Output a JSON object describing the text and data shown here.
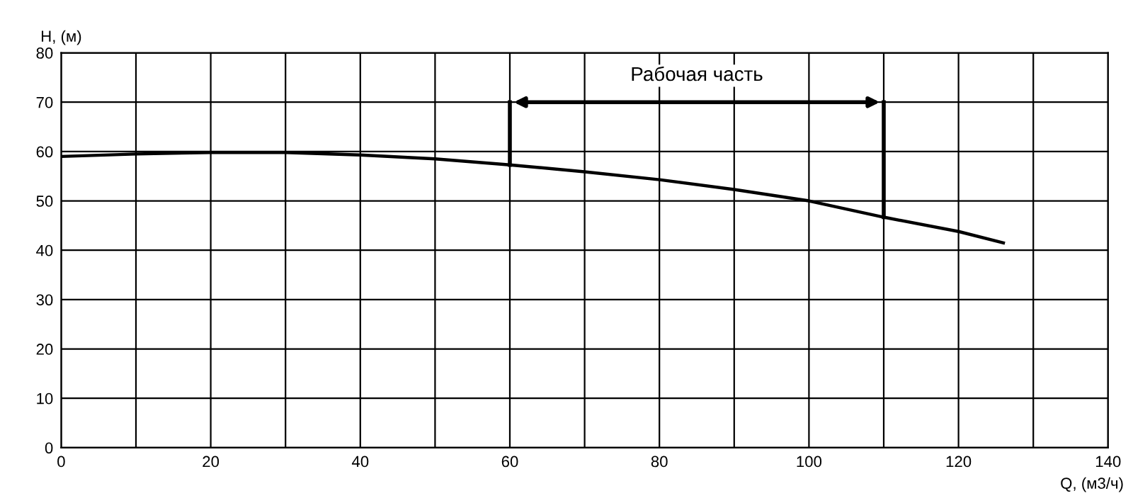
{
  "chart_data": {
    "type": "line",
    "xlabel": "Q, (м3/ч)",
    "ylabel": "H, (м)",
    "xlim": [
      0,
      140
    ],
    "ylim": [
      0,
      80
    ],
    "xticks": [
      0,
      {
        "value": 10,
        "label": null
      },
      20,
      {
        "value": 30,
        "label": null
      },
      40,
      {
        "value": 50,
        "label": null
      },
      60,
      {
        "value": 70,
        "label": null
      },
      80,
      {
        "value": 90,
        "label": null
      },
      100,
      {
        "value": 110,
        "label": null
      },
      120,
      {
        "value": 130,
        "label": null
      },
      140
    ],
    "yticks": [
      0,
      10,
      20,
      30,
      40,
      50,
      60,
      70,
      80
    ],
    "grid": true,
    "series": [
      {
        "color": "#000000",
        "x": [
          0,
          10,
          20,
          30,
          40,
          50,
          60,
          70,
          80,
          90,
          100,
          110,
          120,
          126
        ],
        "values": [
          59.0,
          59.5,
          59.8,
          59.8,
          59.3,
          58.5,
          57.3,
          55.9,
          54.3,
          52.3,
          50.0,
          46.7,
          43.8,
          41.5
        ]
      },
      {
        "color": "#000000",
        "x": [
          60,
          60
        ],
        "values": [
          57.3,
          70
        ]
      },
      {
        "color": "#000000",
        "x": [
          110,
          110
        ],
        "values": [
          46.7,
          70
        ]
      }
    ],
    "annotations": [
      "Рабочая часть"
    ]
  }
}
